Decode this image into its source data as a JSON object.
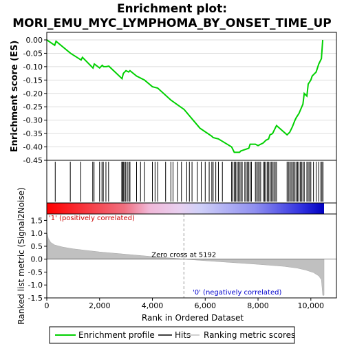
{
  "title_line1": "Enrichment plot:",
  "title_line2": "MORI_EMU_MYC_LYMPHOMA_BY_ONSET_TIME_UP",
  "colors": {
    "enrichment_line": "#00d000",
    "hits": "#000000",
    "metric_fill": "#c0c0c0",
    "positive_label": "#cc0000",
    "negative_label": "#0000cc"
  },
  "chart_data": [
    {
      "type": "line",
      "name": "enrichment-profile",
      "ylabel": "Enrichment score (ES)",
      "xlim": [
        0,
        10500
      ],
      "ylim": [
        -0.45,
        0.0
      ],
      "yticks": [
        0.0,
        -0.05,
        -0.1,
        -0.15,
        -0.2,
        -0.25,
        -0.3,
        -0.35,
        -0.4,
        -0.45
      ],
      "ytick_labels": [
        "0.00",
        "-0.05",
        "-0.10",
        "-0.15",
        "-0.20",
        "-0.25",
        "-0.30",
        "-0.35",
        "-0.40",
        "-0.45"
      ],
      "grid": true,
      "x": [
        0,
        300,
        350,
        900,
        1300,
        1350,
        1750,
        1800,
        2000,
        2100,
        2150,
        2250,
        2350,
        2850,
        2900,
        3000,
        3100,
        3150,
        3400,
        3700,
        4000,
        4200,
        4700,
        5200,
        5800,
        6250,
        6300,
        6500,
        7000,
        7100,
        7300,
        7350,
        7500,
        7650,
        7700,
        7900,
        8000,
        8100,
        8200,
        8300,
        8400,
        8450,
        8550,
        8700,
        9100,
        9200,
        9300,
        9400,
        9450,
        9550,
        9700,
        9750,
        9850,
        9900,
        10000,
        10050,
        10200,
        10300,
        10400,
        10450
      ],
      "y": [
        0.0,
        -0.02,
        -0.005,
        -0.05,
        -0.075,
        -0.065,
        -0.105,
        -0.09,
        -0.105,
        -0.095,
        -0.1,
        -0.1,
        -0.098,
        -0.145,
        -0.125,
        -0.115,
        -0.12,
        -0.115,
        -0.135,
        -0.15,
        -0.175,
        -0.18,
        -0.225,
        -0.26,
        -0.33,
        -0.36,
        -0.365,
        -0.37,
        -0.4,
        -0.42,
        -0.42,
        -0.415,
        -0.41,
        -0.405,
        -0.39,
        -0.39,
        -0.395,
        -0.39,
        -0.385,
        -0.375,
        -0.37,
        -0.355,
        -0.35,
        -0.32,
        -0.355,
        -0.345,
        -0.325,
        -0.3,
        -0.29,
        -0.275,
        -0.24,
        -0.2,
        -0.21,
        -0.165,
        -0.15,
        -0.135,
        -0.12,
        -0.09,
        -0.07,
        0.0
      ]
    },
    {
      "type": "scatter",
      "name": "hits",
      "xlim": [
        0,
        10500
      ],
      "x": [
        320,
        890,
        1290,
        1740,
        1790,
        2000,
        2090,
        2140,
        2240,
        2340,
        2840,
        2870,
        2900,
        2950,
        2990,
        3050,
        3110,
        3150,
        3400,
        3550,
        3700,
        4000,
        4100,
        4200,
        4500,
        4700,
        4780,
        4950,
        5100,
        5300,
        5400,
        5500,
        5700,
        5850,
        6000,
        6150,
        6250,
        6300,
        6400,
        6500,
        6650,
        7000,
        7050,
        7100,
        7150,
        7200,
        7250,
        7300,
        7350,
        7400,
        7500,
        7550,
        7600,
        7650,
        7700,
        7750,
        7900,
        7950,
        8000,
        8050,
        8100,
        8200,
        8250,
        8300,
        8350,
        8400,
        8450,
        8500,
        8550,
        8600,
        8650,
        8700,
        9100,
        9150,
        9200,
        9250,
        9300,
        9350,
        9400,
        9450,
        9500,
        9550,
        9600,
        9650,
        9700,
        9750,
        9850,
        9900,
        9950,
        10000,
        10100,
        10200,
        10300,
        10380,
        10420,
        10460
      ]
    },
    {
      "type": "area",
      "name": "ranked-list-metric",
      "xlabel": "Rank in Ordered Dataset",
      "ylabel": "Ranked list metric (Signal2Noise)",
      "xlim": [
        0,
        10500
      ],
      "ylim": [
        -1.5,
        1.75
      ],
      "xticks": [
        0,
        2000,
        4000,
        6000,
        8000,
        10000
      ],
      "xtick_labels": [
        "0",
        "2,000",
        "4,000",
        "6,000",
        "8,000",
        "10,000"
      ],
      "yticks": [
        1.5,
        1.0,
        0.5,
        0.0,
        -0.5,
        -1.0,
        -1.5
      ],
      "ytick_labels": [
        "1.5",
        "1.0",
        "0.5",
        "0.0",
        "-0.5",
        "-1.0",
        "-1.5"
      ],
      "grid": false,
      "x": [
        0,
        60,
        150,
        300,
        600,
        1000,
        2000,
        3000,
        4000,
        5000,
        5192,
        6000,
        7000,
        8000,
        9000,
        9500,
        9800,
        10100,
        10300,
        10400,
        10450,
        10500
      ],
      "y": [
        1.05,
        0.8,
        0.65,
        0.55,
        0.47,
        0.4,
        0.28,
        0.19,
        0.1,
        0.02,
        0.0,
        -0.06,
        -0.13,
        -0.2,
        -0.28,
        -0.35,
        -0.42,
        -0.52,
        -0.65,
        -0.8,
        -1.4,
        -1.4
      ]
    }
  ],
  "annotations": {
    "positive": "'1' (positively correlated)",
    "negative": "'0' (negatively correlated)",
    "zero_cross": "Zero cross at 5192",
    "zero_cross_x": 5192
  },
  "legend": {
    "items": [
      {
        "label": "Enrichment profile",
        "icon": "green-line-icon"
      },
      {
        "label": "Hits",
        "icon": "black-line-icon"
      },
      {
        "label": "Ranking metric scores",
        "icon": "gray-line-icon"
      }
    ]
  }
}
